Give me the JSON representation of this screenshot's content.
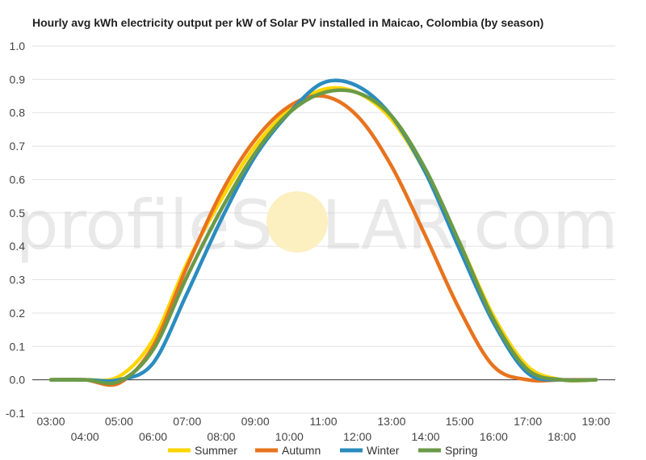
{
  "chart_data": {
    "type": "line",
    "title": "Hourly avg kWh electricity output per kW of Solar PV installed in Maicao, Colombia (by season)",
    "xlabel": "",
    "ylabel": "",
    "x": [
      "03:00",
      "04:00",
      "05:00",
      "06:00",
      "07:00",
      "08:00",
      "09:00",
      "10:00",
      "11:00",
      "12:00",
      "13:00",
      "14:00",
      "15:00",
      "16:00",
      "17:00",
      "18:00",
      "19:00"
    ],
    "ylim": [
      -0.1,
      1.0
    ],
    "yticks": [
      "-0.1",
      "0.0",
      "0.1",
      "0.2",
      "0.3",
      "0.4",
      "0.5",
      "0.6",
      "0.7",
      "0.8",
      "0.9",
      "1.0"
    ],
    "grid": true,
    "legend_position": "bottom",
    "series": [
      {
        "name": "Summer",
        "color": "#FFD500",
        "values": [
          0,
          0,
          0.01,
          0.12,
          0.35,
          0.54,
          0.7,
          0.81,
          0.87,
          0.86,
          0.78,
          0.62,
          0.41,
          0.19,
          0.04,
          0.0,
          0.0
        ]
      },
      {
        "name": "Autumn",
        "color": "#E8731E",
        "values": [
          0,
          0,
          -0.01,
          0.1,
          0.34,
          0.56,
          0.72,
          0.82,
          0.85,
          0.79,
          0.64,
          0.43,
          0.21,
          0.04,
          0.0,
          0.0,
          0.0
        ]
      },
      {
        "name": "Winter",
        "color": "#2B8CBF",
        "values": [
          0,
          0,
          0.0,
          0.05,
          0.26,
          0.48,
          0.67,
          0.8,
          0.89,
          0.88,
          0.79,
          0.62,
          0.39,
          0.17,
          0.02,
          0.0,
          0.0
        ]
      },
      {
        "name": "Spring",
        "color": "#6B9A47",
        "values": [
          0,
          0,
          -0.005,
          0.09,
          0.31,
          0.51,
          0.68,
          0.8,
          0.86,
          0.86,
          0.79,
          0.63,
          0.41,
          0.18,
          0.03,
          0.0,
          0.0
        ]
      }
    ]
  },
  "watermark": {
    "left": "profileS",
    "right": "LAR.com",
    "sun_color": "#FCEFC0"
  }
}
